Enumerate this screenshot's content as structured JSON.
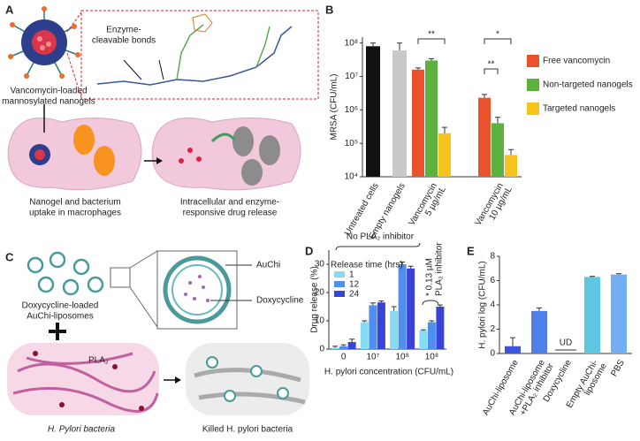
{
  "panel_labels": [
    "A",
    "B",
    "C",
    "D",
    "E"
  ],
  "panel_a": {
    "bond_label": [
      "Enzyme-",
      "cleavable bonds"
    ],
    "nanogel_label": [
      "Vancomycin-loaded",
      "mannosylated nanogels"
    ],
    "step1": [
      "Nanogel and bacterium",
      "uptake in macrophages"
    ],
    "step2": [
      "Intracellular and enzyme-",
      "responsive drug release"
    ]
  },
  "panel_c": {
    "auchi": "AuChi",
    "doxy": "Doxycycline",
    "liposome_label": [
      "Doxycycline-loaded",
      "AuChi-liposomes"
    ],
    "pla2": "PLA₂",
    "bacteria": "H. Pylori bacteria",
    "killed": "Killed H. pylori bacteria"
  },
  "chart_data": [
    {
      "type": "bar",
      "log_scale": true,
      "ylabel": "MRSA (CFU/mL)",
      "categories": [
        [
          "Untreated cells"
        ],
        [
          "Empty nanogels"
        ],
        [
          "Vancomycin",
          "5 µg/mL"
        ],
        [
          "Vancomycin",
          "10 µg/mL"
        ]
      ],
      "control_values": [
        80000000,
        60000000,
        null,
        null
      ],
      "control_errors": [
        20000000,
        40000000,
        null,
        null
      ],
      "control_colors": [
        "#111111",
        "#c9c9c9",
        null,
        null
      ],
      "series": [
        {
          "name": "Free vancomycin",
          "color": "#e9532b",
          "values": [
            null,
            null,
            16000000,
            2300000
          ],
          "errors": [
            null,
            null,
            2000000,
            600000
          ]
        },
        {
          "name": "Non-targeted nanogels",
          "color": "#5cb13f",
          "values": [
            null,
            null,
            30000000,
            400000
          ],
          "errors": [
            null,
            null,
            4000000,
            200000
          ]
        },
        {
          "name": "Targeted nanogels",
          "color": "#f7c31e",
          "values": [
            null,
            null,
            200000,
            45000
          ],
          "errors": [
            null,
            null,
            100000,
            20000
          ]
        }
      ],
      "ylim": [
        10000,
        150000000
      ],
      "yticks": [
        {
          "value": 10000,
          "label": "10⁴"
        },
        {
          "value": 100000,
          "label": "10⁵"
        },
        {
          "value": 1000000,
          "label": "10⁶"
        },
        {
          "value": 10000000,
          "label": "10⁷"
        },
        {
          "value": 100000000,
          "label": "10⁸"
        }
      ],
      "annotations": [
        "**",
        "*",
        "**"
      ],
      "legend": "right"
    },
    {
      "type": "bar",
      "ylabel": "Drug release (%)",
      "xlabel": "H. pylori concentration (CFU/mL)",
      "categories": [
        "0",
        "10⁷",
        "10⁸",
        "10⁸"
      ],
      "legend_title": "Release time (hrs)",
      "series": [
        {
          "name": "1",
          "color": "#86dcf2",
          "values": [
            0.5,
            9.5,
            13.5,
            6.5
          ],
          "errors": [
            0.5,
            0.5,
            1.5,
            0.3
          ]
        },
        {
          "name": "12",
          "color": "#4f8ff0",
          "values": [
            1,
            15.5,
            30,
            9.5
          ],
          "errors": [
            0.5,
            0.8,
            0.8,
            0.5
          ]
        },
        {
          "name": "24",
          "color": "#3a43d8",
          "values": [
            2.5,
            16.5,
            28.5,
            15
          ],
          "errors": [
            1,
            0.5,
            0.8,
            0.6
          ]
        }
      ],
      "ylim": [
        0,
        35
      ],
      "yticks": [
        0,
        10,
        20,
        30
      ],
      "annotations": [
        "No PLA₂ inhibitor",
        [
          "* 0.13 µM",
          "PLA₂ inhibitor"
        ]
      ]
    },
    {
      "type": "bar",
      "ylabel": "H. pylori log (CFU/mL)",
      "categories": [
        [
          "AuChi-liposome"
        ],
        [
          "AuChi-liposome",
          "+PLA₂ inhibitor"
        ],
        [
          "Doxycycline"
        ],
        [
          "Empty AuChi-",
          "liposome"
        ],
        [
          "PBS"
        ]
      ],
      "values": [
        0.6,
        3.5,
        null,
        6.3,
        6.5
      ],
      "errors": [
        0.7,
        0.25,
        null,
        0.05,
        0.07
      ],
      "value_labels": [
        null,
        null,
        "UD",
        null,
        null
      ],
      "colors": [
        "#3b55e0",
        "#4f7fe8",
        null,
        "#5ec8e2",
        "#72aef0"
      ],
      "ylim": [
        0,
        8
      ],
      "yticks": [
        0,
        2,
        4,
        6,
        8
      ]
    }
  ]
}
